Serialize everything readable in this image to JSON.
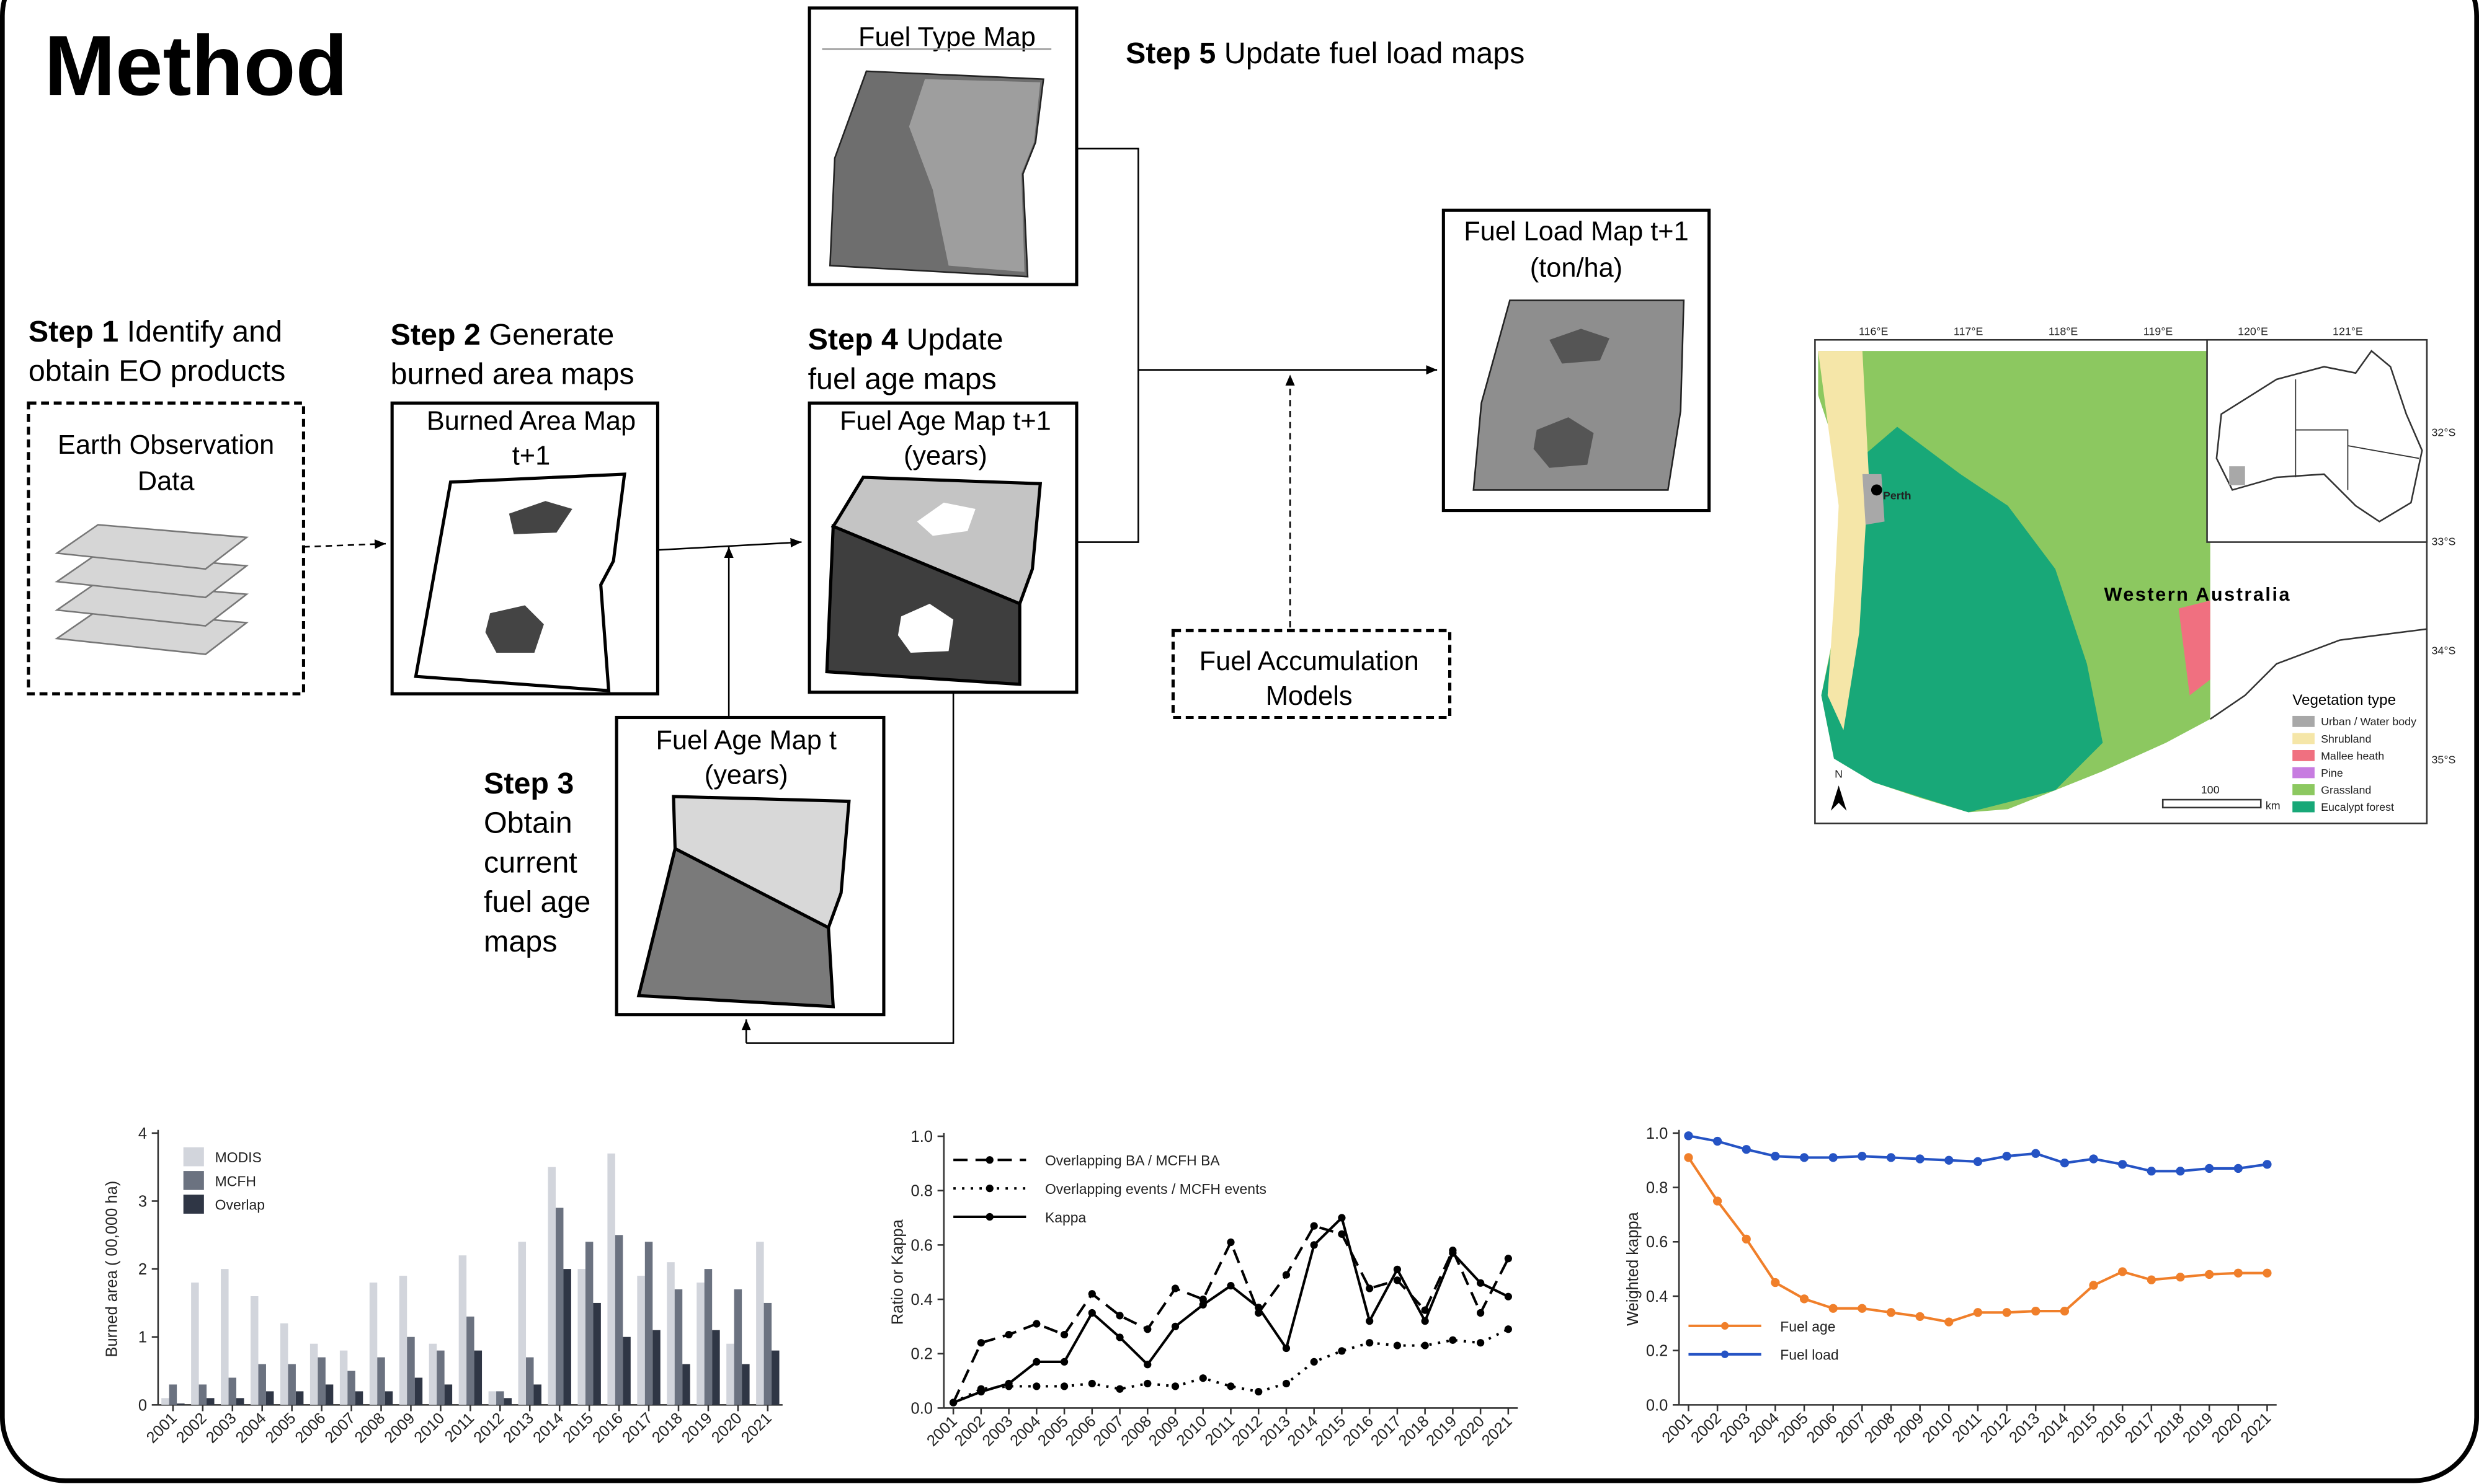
{
  "title": "Method",
  "steps": [
    {
      "label": "Step 1",
      "text": [
        "Identify and",
        "obtain EO products"
      ]
    },
    {
      "label": "Step 2",
      "text": [
        "Generate",
        "burned area maps"
      ]
    },
    {
      "label": "Step 3",
      "text": [
        "Obtain",
        "current",
        "fuel age",
        "maps"
      ]
    },
    {
      "label": "Step 4",
      "text": [
        "Update",
        "fuel age maps"
      ]
    },
    {
      "label": "Step 5",
      "text": [
        "Update fuel load maps"
      ]
    }
  ],
  "nodes": [
    {
      "label": [
        "Earth Observation",
        "Data"
      ]
    },
    {
      "label": [
        "Burned Area Map",
        "t+1"
      ]
    },
    {
      "label": [
        "Fuel Age Map t+1",
        "(years)"
      ]
    },
    {
      "label": [
        "Fuel Age Map t",
        "(years)"
      ]
    },
    {
      "label": [
        "Fuel Type Map"
      ]
    },
    {
      "label": [
        "Fuel Load Map t+1",
        "(ton/ha)"
      ]
    },
    {
      "label": [
        "Fuel Accumulation",
        "Models"
      ]
    }
  ],
  "map": {
    "lon_labels": [
      "116°E",
      "117°E",
      "118°E",
      "119°E",
      "120°E",
      "121°E"
    ],
    "lat_labels": [
      "32°S",
      "33°S",
      "34°S",
      "35°S"
    ],
    "city": "Perth",
    "region": "Western Australia",
    "north": "N",
    "scale": "100",
    "scale_unit": "km",
    "legend": {
      "title": "Vegetation type",
      "items": [
        {
          "label": "Urban / Water body",
          "color": "#a8a8a8"
        },
        {
          "label": "Shrubland",
          "color": "#f5e6a8"
        },
        {
          "label": "Mallee heath",
          "color": "#f07080"
        },
        {
          "label": "Pine",
          "color": "#c77ce0"
        },
        {
          "label": "Grassland",
          "color": "#8cc860"
        },
        {
          "label": "Eucalypt forest",
          "color": "#18a878"
        }
      ]
    }
  },
  "chart_data": [
    {
      "type": "bar",
      "ylabel": "Burned area ( 00,000 ha)",
      "categories": [
        "2001",
        "2002",
        "2003",
        "2004",
        "2005",
        "2006",
        "2007",
        "2008",
        "2009",
        "2010",
        "2011",
        "2012",
        "2013",
        "2014",
        "2015",
        "2016",
        "2017",
        "2018",
        "2019",
        "2020",
        "2021"
      ],
      "series": [
        {
          "name": "MODIS",
          "color": "#d2d5dc",
          "values": [
            0.1,
            1.8,
            2.0,
            1.6,
            1.2,
            0.9,
            0.8,
            1.8,
            1.9,
            0.9,
            2.2,
            0.2,
            2.4,
            3.5,
            2.0,
            3.7,
            1.9,
            2.1,
            1.8,
            0.9,
            2.4
          ]
        },
        {
          "name": "MCFH",
          "color": "#6b7280",
          "values": [
            0.3,
            0.3,
            0.4,
            0.6,
            0.6,
            0.7,
            0.5,
            0.7,
            1.0,
            0.8,
            1.3,
            0.2,
            0.7,
            2.9,
            2.4,
            2.5,
            2.4,
            1.7,
            2.0,
            1.7,
            1.5
          ]
        },
        {
          "name": "Overlap",
          "color": "#2f3645",
          "values": [
            0.02,
            0.1,
            0.1,
            0.2,
            0.2,
            0.3,
            0.2,
            0.2,
            0.4,
            0.3,
            0.8,
            0.1,
            0.3,
            2.0,
            1.5,
            1.0,
            1.1,
            0.6,
            1.1,
            0.6,
            0.8
          ]
        }
      ],
      "ylim": [
        0,
        4
      ],
      "yticks": [
        0,
        1,
        2,
        3,
        4
      ],
      "legend": "upper left"
    },
    {
      "type": "line",
      "ylabel": "Ratio or Kappa",
      "categories": [
        "2001",
        "2002",
        "2003",
        "2004",
        "2005",
        "2006",
        "2007",
        "2008",
        "2009",
        "2010",
        "2011",
        "2012",
        "2013",
        "2014",
        "2015",
        "2016",
        "2017",
        "2018",
        "2019",
        "2020",
        "2021"
      ],
      "series": [
        {
          "name": "Overlapping BA / MCFH BA",
          "color": "#000000",
          "style": "dashed",
          "values": [
            0.02,
            0.24,
            0.27,
            0.31,
            0.27,
            0.42,
            0.34,
            0.29,
            0.44,
            0.4,
            0.61,
            0.35,
            0.49,
            0.67,
            0.64,
            0.44,
            0.47,
            0.36,
            0.58,
            0.35,
            0.55
          ]
        },
        {
          "name": "Overlapping events / MCFH events",
          "color": "#000000",
          "style": "dotted",
          "values": [
            0.02,
            0.07,
            0.08,
            0.08,
            0.08,
            0.09,
            0.07,
            0.09,
            0.08,
            0.11,
            0.08,
            0.06,
            0.09,
            0.17,
            0.21,
            0.24,
            0.23,
            0.23,
            0.25,
            0.24,
            0.29
          ]
        },
        {
          "name": "Kappa",
          "color": "#000000",
          "style": "solid",
          "values": [
            0.02,
            0.06,
            0.09,
            0.17,
            0.17,
            0.35,
            0.26,
            0.16,
            0.3,
            0.38,
            0.45,
            0.37,
            0.22,
            0.6,
            0.7,
            0.32,
            0.51,
            0.32,
            0.57,
            0.46,
            0.41
          ]
        }
      ],
      "ylim": [
        0,
        1
      ],
      "yticks": [
        {
          "value": 0,
          "label": "0.0"
        },
        0.2,
        0.4,
        0.6,
        0.8,
        {
          "value": 1,
          "label": "1.0"
        }
      ],
      "legend": "upper left"
    },
    {
      "type": "line",
      "ylabel": "Weighted kappa",
      "categories": [
        "2001",
        "2002",
        "2003",
        "2004",
        "2005",
        "2006",
        "2007",
        "2008",
        "2009",
        "2010",
        "2011",
        "2012",
        "2013",
        "2014",
        "2015",
        "2016",
        "2017",
        "2018",
        "2019",
        "2020",
        "2021"
      ],
      "series": [
        {
          "name": "Fuel age",
          "color": "#f07f2a",
          "style": "solid",
          "values": [
            0.91,
            0.75,
            0.61,
            0.45,
            0.39,
            0.355,
            0.355,
            0.34,
            0.325,
            0.305,
            0.34,
            0.34,
            0.345,
            0.345,
            0.44,
            0.49,
            0.46,
            0.47,
            0.48,
            0.485,
            0.485
          ]
        },
        {
          "name": "Fuel load",
          "color": "#2553c4",
          "style": "solid",
          "values": [
            0.99,
            0.97,
            0.94,
            0.915,
            0.91,
            0.91,
            0.915,
            0.91,
            0.905,
            0.9,
            0.895,
            0.915,
            0.925,
            0.89,
            0.905,
            0.885,
            0.86,
            0.86,
            0.87,
            0.87,
            0.885
          ]
        }
      ],
      "ylim": [
        0,
        1
      ],
      "yticks": [
        {
          "value": 0,
          "label": "0.0"
        },
        0.2,
        0.4,
        0.6,
        0.8,
        {
          "value": 1,
          "label": "1.0"
        }
      ],
      "legend": "lower left"
    }
  ]
}
